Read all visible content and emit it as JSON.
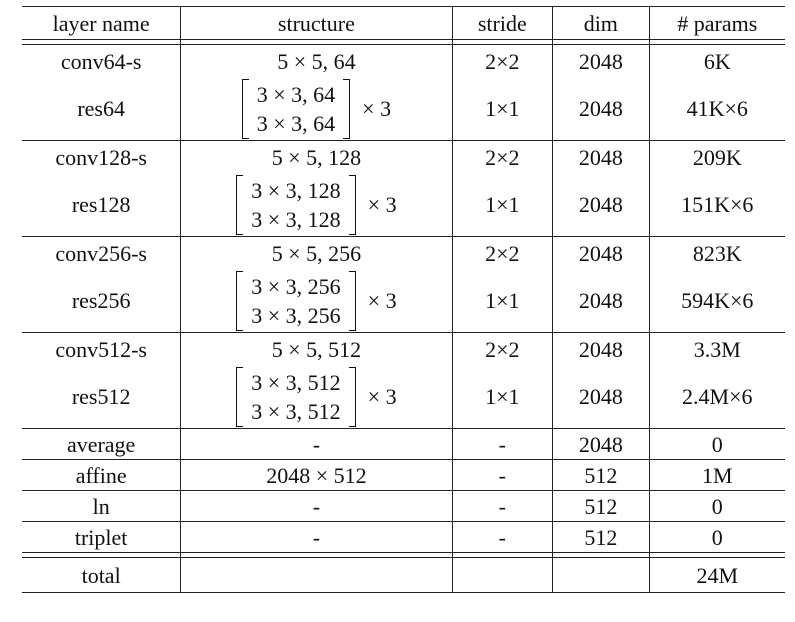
{
  "header": {
    "layer": "layer name",
    "structure": "structure",
    "stride": "stride",
    "dim": "dim",
    "params": "# params"
  },
  "rows": [
    {
      "name": "conv64-s",
      "structure": "5 × 5, 64",
      "stride": "2×2",
      "dim": "2048",
      "params": "6K"
    },
    {
      "name": "res64",
      "matrix": [
        "3 × 3, 64",
        "3 × 3, 64"
      ],
      "repeat": "× 3",
      "stride": "1×1",
      "dim": "2048",
      "params": "41K×6"
    },
    {
      "name": "conv128-s",
      "structure": "5 × 5, 128",
      "stride": "2×2",
      "dim": "2048",
      "params": "209K"
    },
    {
      "name": "res128",
      "matrix": [
        "3 × 3, 128",
        "3 × 3, 128"
      ],
      "repeat": "× 3",
      "stride": "1×1",
      "dim": "2048",
      "params": "151K×6"
    },
    {
      "name": "conv256-s",
      "structure": "5 × 5, 256",
      "stride": "2×2",
      "dim": "2048",
      "params": "823K"
    },
    {
      "name": "res256",
      "matrix": [
        "3 × 3, 256",
        "3 × 3, 256"
      ],
      "repeat": "× 3",
      "stride": "1×1",
      "dim": "2048",
      "params": "594K×6"
    },
    {
      "name": "conv512-s",
      "structure": "5 × 5, 512",
      "stride": "2×2",
      "dim": "2048",
      "params": "3.3M"
    },
    {
      "name": "res512",
      "matrix": [
        "3 × 3, 512",
        "3 × 3, 512"
      ],
      "repeat": "× 3",
      "stride": "1×1",
      "dim": "2048",
      "params": "2.4M×6"
    },
    {
      "name": "average",
      "structure": "-",
      "stride": "-",
      "dim": "2048",
      "params": "0"
    },
    {
      "name": "affine",
      "structure": "2048 × 512",
      "stride": "-",
      "dim": "512",
      "params": "1M"
    },
    {
      "name": "ln",
      "structure": "-",
      "stride": "-",
      "dim": "512",
      "params": "0"
    },
    {
      "name": "triplet",
      "structure": "-",
      "stride": "-",
      "dim": "512",
      "params": "0"
    }
  ],
  "total": {
    "name": "total",
    "params": "24M"
  }
}
